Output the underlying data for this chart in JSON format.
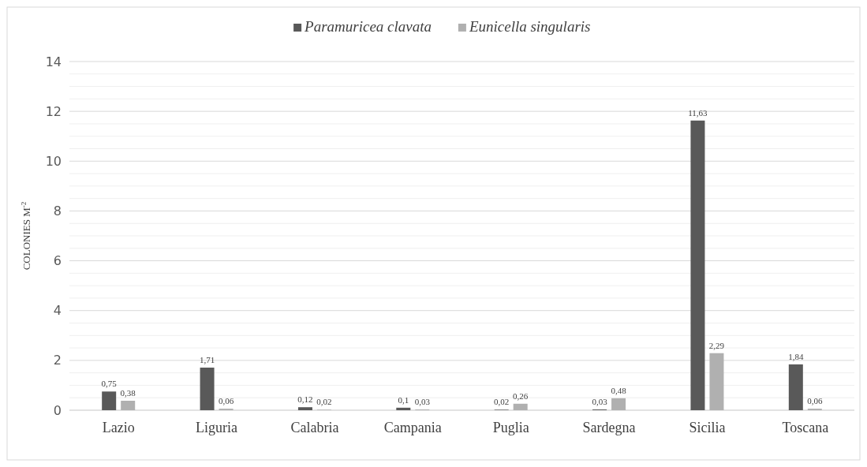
{
  "chart_data": {
    "type": "bar",
    "ylabel": "COLONIES M$^{-2}$",
    "categories": [
      "Lazio",
      "Liguria",
      "Calabria",
      "Campania",
      "Puglia",
      "Sardegna",
      "Sicilia",
      "Toscana"
    ],
    "series": [
      {
        "name": "Paramuricea clavata",
        "color": "#595959",
        "values": [
          0.75,
          1.71,
          0.12,
          0.1,
          0.02,
          0.03,
          11.63,
          1.84
        ],
        "value_labels": [
          "0,75",
          "1,71",
          "0,12",
          "0,1",
          "0,02",
          "0,03",
          "11,63",
          "1,84"
        ]
      },
      {
        "name": "Eunicella singularis",
        "color": "#b0b0b0",
        "values": [
          0.38,
          0.06,
          0.02,
          0.03,
          0.26,
          0.48,
          2.29,
          0.06
        ],
        "value_labels": [
          "0,38",
          "0,06",
          "0,02",
          "0,03",
          "0,26",
          "0,48",
          "2,29",
          "0,06"
        ]
      }
    ],
    "ylim": [
      0,
      14
    ],
    "yticks": [
      0,
      {
        "value": 0.5,
        "label": null
      },
      {
        "value": 1,
        "label": null
      },
      {
        "value": 1.5,
        "label": null
      },
      2,
      {
        "value": 2.5,
        "label": null
      },
      {
        "value": 3,
        "label": null
      },
      {
        "value": 3.5,
        "label": null
      },
      4,
      {
        "value": 4.5,
        "label": null
      },
      {
        "value": 5,
        "label": null
      },
      {
        "value": 5.5,
        "label": null
      },
      6,
      {
        "value": 6.5,
        "label": null
      },
      {
        "value": 7,
        "label": null
      },
      {
        "value": 7.5,
        "label": null
      },
      8,
      {
        "value": 8.5,
        "label": null
      },
      {
        "value": 9,
        "label": null
      },
      {
        "value": 9.5,
        "label": null
      },
      10,
      {
        "value": 10.5,
        "label": null
      },
      {
        "value": 11,
        "label": null
      },
      {
        "value": 11.5,
        "label": null
      },
      12,
      {
        "value": 12.5,
        "label": null
      },
      {
        "value": 13,
        "label": null
      },
      {
        "value": 13.5,
        "label": null
      },
      14
    ],
    "grid": true,
    "legend": "top"
  }
}
